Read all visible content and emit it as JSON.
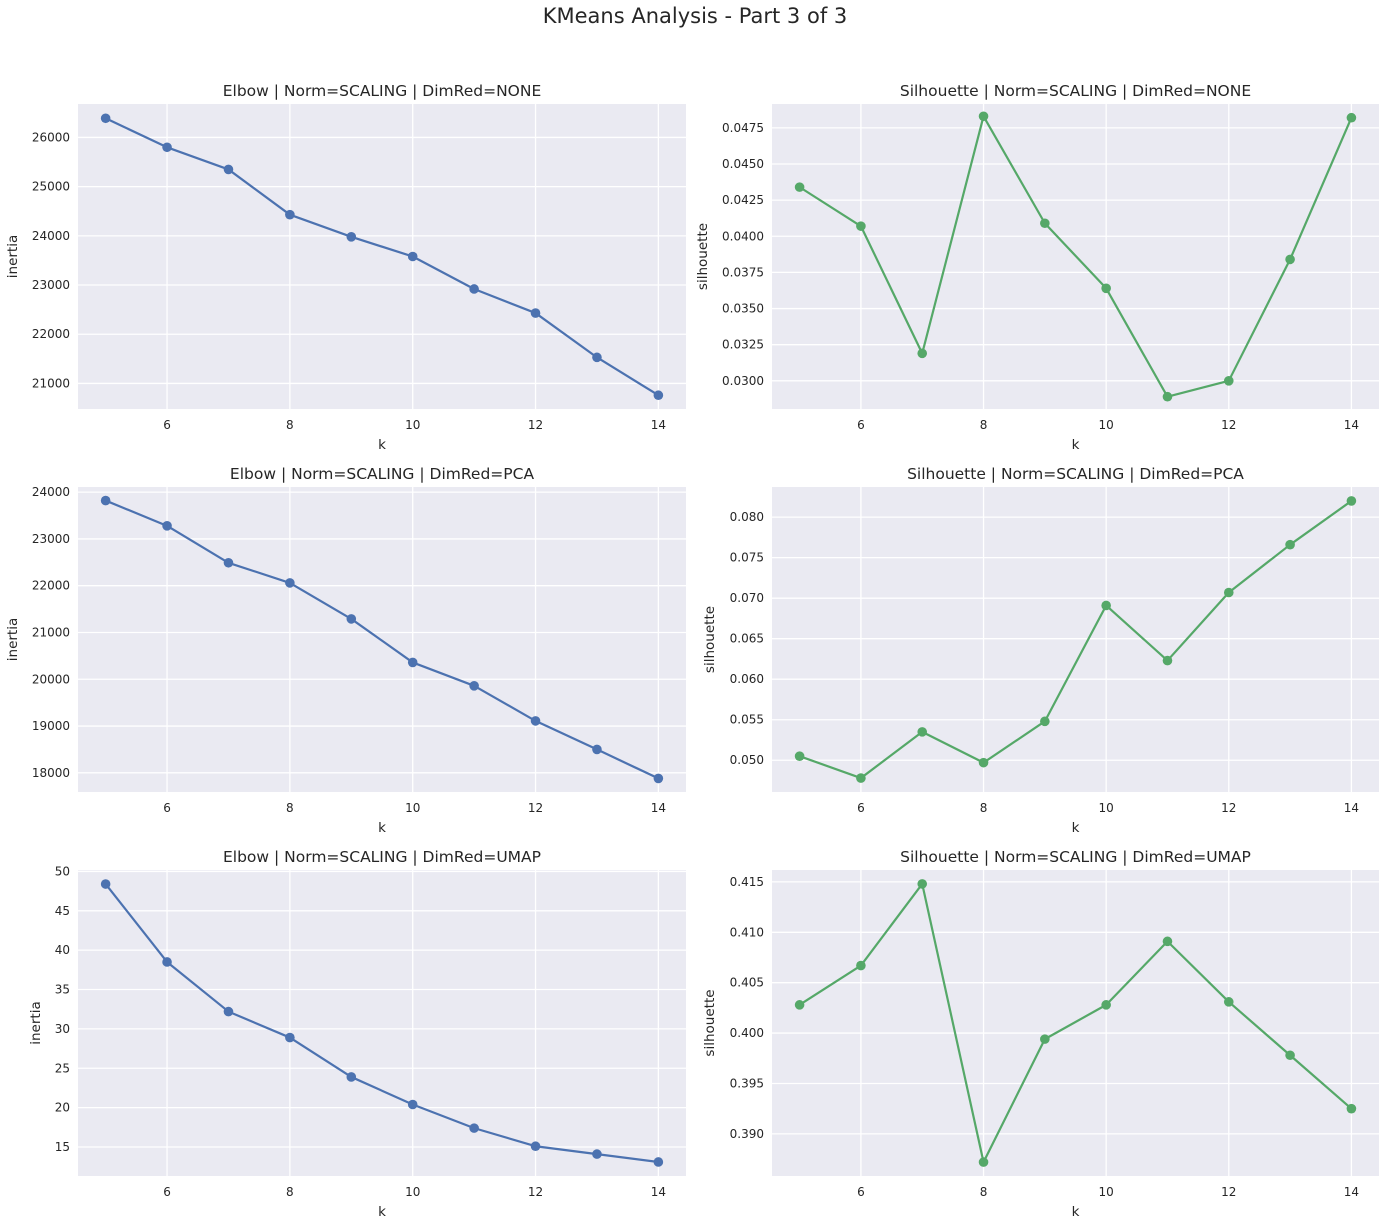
{
  "figure": {
    "title": "KMeans Analysis - Part 3 of 3"
  },
  "colors": {
    "elbow": "#4c72b0",
    "silhouette": "#55a868",
    "background": "#eaeaf2",
    "grid": "#ffffff",
    "text": "#262626"
  },
  "chart_data": [
    {
      "type": "line",
      "title": "Elbow | Norm=SCALING | DimRed=NONE",
      "xlabel": "k",
      "ylabel": "inertia",
      "x": [
        5,
        6,
        7,
        8,
        9,
        10,
        11,
        12,
        13,
        14
      ],
      "xticks": [
        6,
        8,
        10,
        12,
        14
      ],
      "xlim": [
        4.55,
        14.45
      ],
      "y": [
        26390,
        25800,
        25350,
        24430,
        23980,
        23580,
        22920,
        22430,
        21530,
        20760
      ],
      "yticks": [
        21000,
        22000,
        23000,
        24000,
        25000,
        26000
      ],
      "ylim": [
        20480,
        26680
      ],
      "tick_format": "0",
      "series_name": "",
      "color_key": "elbow",
      "grid": true
    },
    {
      "type": "line",
      "title": "Silhouette | Norm=SCALING | DimRed=NONE",
      "xlabel": "k",
      "ylabel": "silhouette",
      "x": [
        5,
        6,
        7,
        8,
        9,
        10,
        11,
        12,
        13,
        14
      ],
      "xticks": [
        6,
        8,
        10,
        12,
        14
      ],
      "xlim": [
        4.55,
        14.45
      ],
      "y": [
        0.0434,
        0.0407,
        0.0319,
        0.0483,
        0.0409,
        0.0364,
        0.0289,
        0.03,
        0.0384,
        0.0482
      ],
      "yticks": [
        0.03,
        0.0325,
        0.035,
        0.0375,
        0.04,
        0.0425,
        0.045,
        0.0475
      ],
      "ylim": [
        0.02805,
        0.04915
      ],
      "tick_format": "4",
      "color_key": "silhouette",
      "grid": true
    },
    {
      "type": "line",
      "title": "Elbow | Norm=SCALING | DimRed=PCA",
      "xlabel": "k",
      "ylabel": "inertia",
      "x": [
        5,
        6,
        7,
        8,
        9,
        10,
        11,
        12,
        13,
        14
      ],
      "xticks": [
        6,
        8,
        10,
        12,
        14
      ],
      "xlim": [
        4.55,
        14.45
      ],
      "y": [
        23820,
        23280,
        22490,
        22060,
        21290,
        20360,
        19860,
        19110,
        18500,
        17880
      ],
      "yticks": [
        18000,
        19000,
        20000,
        21000,
        22000,
        23000,
        24000
      ],
      "ylim": [
        17590,
        24110
      ],
      "tick_format": "0",
      "color_key": "elbow",
      "grid": true
    },
    {
      "type": "line",
      "title": "Silhouette | Norm=SCALING | DimRed=PCA",
      "xlabel": "k",
      "ylabel": "silhouette",
      "x": [
        5,
        6,
        7,
        8,
        9,
        10,
        11,
        12,
        13,
        14
      ],
      "xticks": [
        6,
        8,
        10,
        12,
        14
      ],
      "xlim": [
        4.55,
        14.45
      ],
      "y": [
        0.0505,
        0.0478,
        0.0535,
        0.0497,
        0.0548,
        0.0691,
        0.0623,
        0.0707,
        0.0766,
        0.082
      ],
      "yticks": [
        0.05,
        0.055,
        0.06,
        0.065,
        0.07,
        0.075,
        0.08
      ],
      "ylim": [
        0.04608,
        0.08372
      ],
      "tick_format": "3",
      "color_key": "silhouette",
      "grid": true
    },
    {
      "type": "line",
      "title": "Elbow | Norm=SCALING | DimRed=UMAP",
      "xlabel": "k",
      "ylabel": "inertia",
      "x": [
        5,
        6,
        7,
        8,
        9,
        10,
        11,
        12,
        13,
        14
      ],
      "xticks": [
        6,
        8,
        10,
        12,
        14
      ],
      "xlim": [
        4.55,
        14.45
      ],
      "y": [
        48.4,
        38.5,
        32.2,
        28.9,
        23.9,
        20.4,
        17.4,
        15.1,
        14.1,
        13.1
      ],
      "yticks": [
        15,
        20,
        25,
        30,
        35,
        40,
        45,
        50
      ],
      "ylim": [
        11.32,
        50.18
      ],
      "tick_format": "0",
      "color_key": "elbow",
      "grid": true
    },
    {
      "type": "line",
      "title": "Silhouette | Norm=SCALING | DimRed=UMAP",
      "xlabel": "k",
      "ylabel": "silhouette",
      "x": [
        5,
        6,
        7,
        8,
        9,
        10,
        11,
        12,
        13,
        14
      ],
      "xticks": [
        6,
        8,
        10,
        12,
        14
      ],
      "xlim": [
        4.55,
        14.45
      ],
      "y": [
        0.4028,
        0.4067,
        0.4148,
        0.3872,
        0.3994,
        0.4028,
        0.4091,
        0.4031,
        0.3978,
        0.3925
      ],
      "yticks": [
        0.39,
        0.395,
        0.4,
        0.405,
        0.41,
        0.415
      ],
      "ylim": [
        0.38582,
        0.41618
      ],
      "tick_format": "3",
      "color_key": "silhouette",
      "grid": true
    }
  ]
}
